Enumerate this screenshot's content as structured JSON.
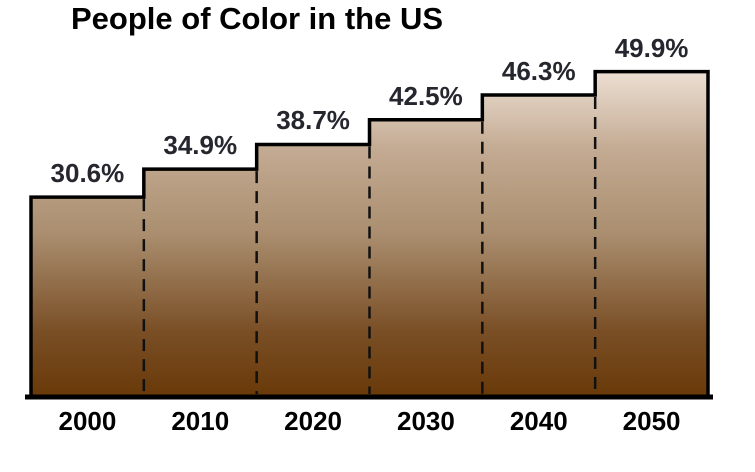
{
  "title": "People of Color in the US",
  "chart_data": {
    "type": "area",
    "subtype": "stepped-bar",
    "title": "People of Color in the US",
    "categories": [
      "2000",
      "2010",
      "2020",
      "2030",
      "2040",
      "2050"
    ],
    "values": [
      30.6,
      34.9,
      38.7,
      42.5,
      46.3,
      49.9
    ],
    "value_suffix": "%",
    "xlabel": "",
    "ylabel": "",
    "ylim": [
      0,
      50
    ],
    "grid": false,
    "legend": "none",
    "annotations": [
      "30.6%",
      "34.9%",
      "38.7%",
      "42.5%",
      "46.3%",
      "49.9%"
    ],
    "colors": {
      "outline": "#000000",
      "divider_dash": "#111111",
      "baseline": "#000000",
      "value_label_text": "#26262e",
      "axis_label_text": "#000000",
      "background": "#ffffff",
      "gradient_stops": [
        {
          "offset": 0.0,
          "color": "#ecdfd3"
        },
        {
          "offset": 0.24,
          "color": "#c3aa92"
        },
        {
          "offset": 0.5,
          "color": "#aa8e6f"
        },
        {
          "offset": 0.8,
          "color": "#7a4f26"
        },
        {
          "offset": 1.0,
          "color": "#693908"
        }
      ]
    }
  }
}
